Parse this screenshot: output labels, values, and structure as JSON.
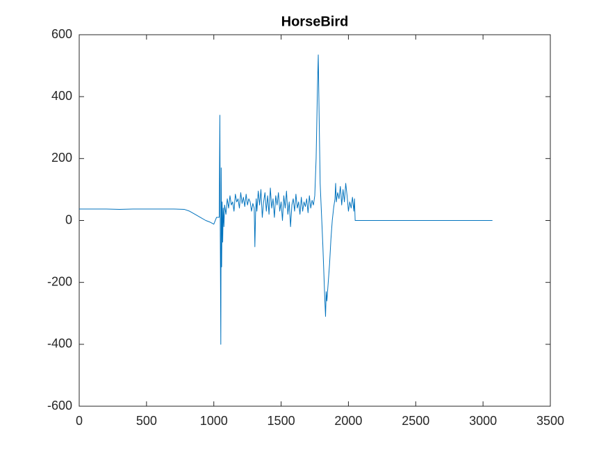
{
  "chart_data": {
    "type": "line",
    "title": "HorseBird",
    "series": [
      {
        "color": "#0072bd",
        "x": [
          0,
          100,
          200,
          300,
          400,
          500,
          600,
          700,
          780,
          820,
          860,
          900,
          940,
          970,
          1000,
          1020,
          1040,
          1045,
          1048,
          1052,
          1055,
          1058,
          1062,
          1066,
          1070,
          1075,
          1080,
          1090,
          1100,
          1110,
          1120,
          1130,
          1140,
          1150,
          1160,
          1170,
          1180,
          1190,
          1200,
          1210,
          1220,
          1230,
          1240,
          1250,
          1260,
          1270,
          1280,
          1290,
          1300,
          1305,
          1310,
          1315,
          1320,
          1330,
          1340,
          1350,
          1360,
          1370,
          1380,
          1390,
          1400,
          1410,
          1420,
          1430,
          1440,
          1450,
          1460,
          1470,
          1480,
          1490,
          1500,
          1510,
          1520,
          1530,
          1540,
          1550,
          1560,
          1570,
          1580,
          1590,
          1600,
          1610,
          1620,
          1630,
          1640,
          1650,
          1660,
          1670,
          1680,
          1690,
          1700,
          1710,
          1720,
          1730,
          1740,
          1750,
          1760,
          1770,
          1776,
          1782,
          1790,
          1800,
          1810,
          1820,
          1825,
          1830,
          1835,
          1840,
          1850,
          1860,
          1870,
          1880,
          1890,
          1900,
          1905,
          1910,
          1920,
          1930,
          1940,
          1950,
          1960,
          1970,
          1980,
          1990,
          2000,
          2010,
          2020,
          2030,
          2040,
          2045,
          2050,
          2100,
          3070
        ],
        "values": [
          37,
          37,
          37,
          36,
          37,
          37,
          37,
          37,
          36,
          30,
          20,
          10,
          0,
          -5,
          -12,
          10,
          10,
          340,
          -50,
          -400,
          170,
          -150,
          60,
          -70,
          40,
          -20,
          50,
          20,
          70,
          40,
          80,
          50,
          60,
          30,
          85,
          60,
          70,
          40,
          90,
          55,
          75,
          45,
          85,
          50,
          70,
          60,
          30,
          55,
          40,
          -85,
          20,
          70,
          30,
          95,
          50,
          100,
          10,
          60,
          90,
          30,
          80,
          20,
          105,
          40,
          70,
          10,
          80,
          50,
          90,
          30,
          60,
          0,
          80,
          40,
          95,
          20,
          60,
          -20,
          50,
          70,
          30,
          85,
          40,
          60,
          20,
          75,
          30,
          60,
          45,
          70,
          25,
          80,
          40,
          65,
          50,
          80,
          200,
          430,
          535,
          350,
          120,
          20,
          -80,
          -200,
          -260,
          -310,
          -230,
          -260,
          -200,
          -140,
          -60,
          0,
          40,
          70,
          120,
          60,
          90,
          70,
          110,
          50,
          100,
          60,
          120,
          80,
          30,
          60,
          40,
          75,
          30,
          70,
          0,
          0,
          0
        ]
      }
    ],
    "xlim": [
      0,
      3500
    ],
    "xticks": [
      0,
      500,
      1000,
      1500,
      2000,
      2500,
      3000,
      3500
    ],
    "ylim": [
      -600,
      600
    ],
    "yticks": [
      -600,
      -400,
      -200,
      0,
      200,
      400,
      600
    ]
  }
}
